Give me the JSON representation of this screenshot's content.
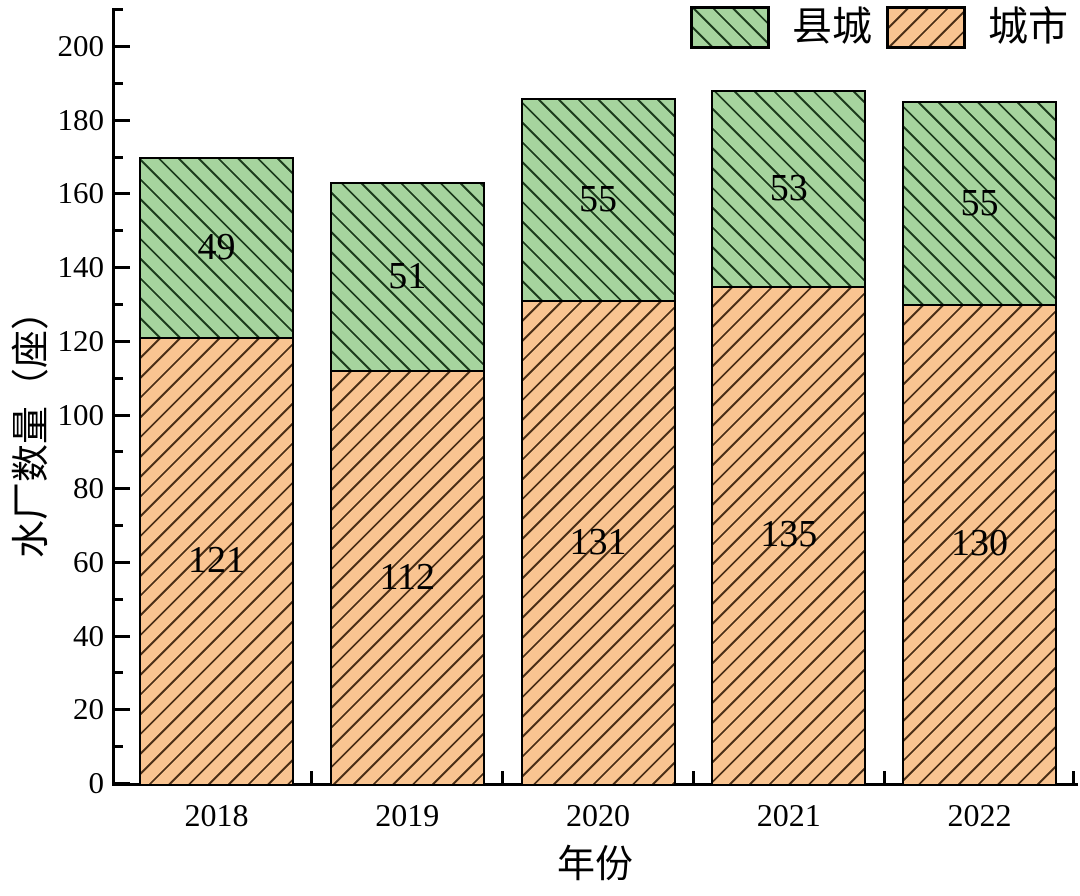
{
  "chart_data": {
    "type": "bar",
    "stacked": true,
    "categories": [
      "2018",
      "2019",
      "2020",
      "2021",
      "2022"
    ],
    "series": [
      {
        "name": "城市",
        "values": [
          121,
          112,
          131,
          135,
          130
        ],
        "fill": "#f9c491",
        "hatch": "/",
        "hatch_color": "#4a2e16"
      },
      {
        "name": "县城",
        "values": [
          49,
          51,
          55,
          53,
          55
        ],
        "fill": "#a6d49e",
        "hatch": "\\",
        "hatch_color": "#1c3b1c"
      }
    ],
    "totals": [
      170,
      163,
      186,
      188,
      185
    ],
    "title": "",
    "xlabel": "年份",
    "ylabel": "水厂数量（座）",
    "ylim": [
      0,
      210
    ],
    "yticks": [
      0,
      20,
      40,
      60,
      80,
      100,
      120,
      140,
      160,
      180,
      200
    ],
    "ytick_minor_step": 10,
    "grid": false,
    "bar_edge_color": "#000000",
    "background": "#ffffff",
    "legend_position": "top-right"
  },
  "legend": {
    "items": [
      {
        "label": "县城",
        "fill": "#a6d49e",
        "hatch": "\\",
        "hatch_color": "#1c3b1c"
      },
      {
        "label": "城市",
        "fill": "#f9c491",
        "hatch": "/",
        "hatch_color": "#4a2e16"
      }
    ]
  }
}
